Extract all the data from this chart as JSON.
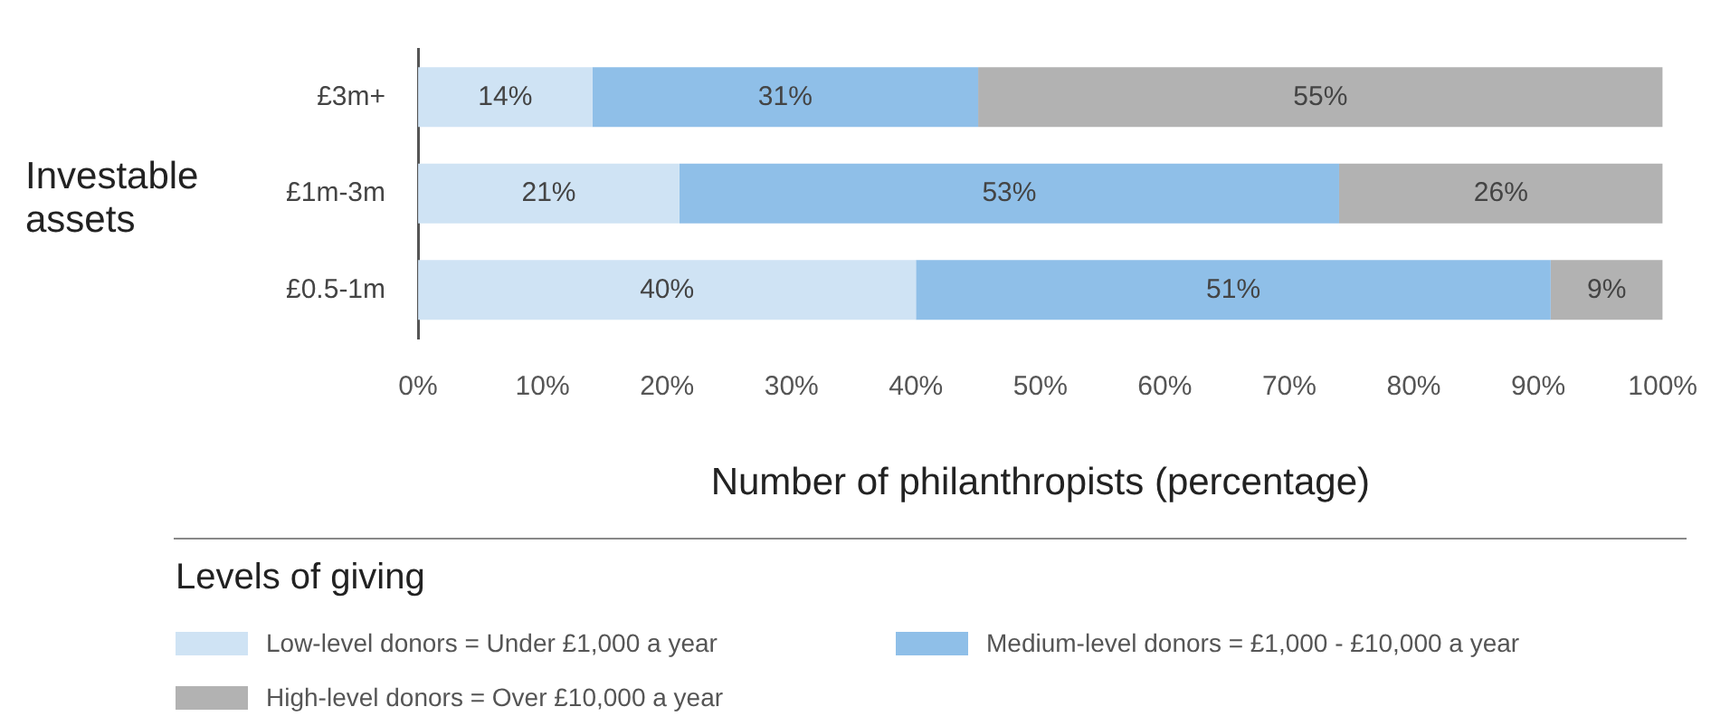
{
  "chart_data": {
    "type": "bar",
    "orientation": "horizontal",
    "stacked": true,
    "categories": [
      "£3m+",
      "£1m-3m",
      "£0.5-1m"
    ],
    "ylabel": "Investable assets",
    "xlabel": "Number of philanthropists (percentage)",
    "legend_title": "Levels of giving",
    "legend": "bottom",
    "grid": false,
    "xlim": [
      0,
      100
    ],
    "xticks": [
      {
        "value": 0,
        "label": "0%"
      },
      {
        "value": 10,
        "label": "10%"
      },
      {
        "value": 20,
        "label": "20%"
      },
      {
        "value": 30,
        "label": "30%"
      },
      {
        "value": 40,
        "label": "40%"
      },
      {
        "value": 50,
        "label": "50%"
      },
      {
        "value": 60,
        "label": "60%"
      },
      {
        "value": 70,
        "label": "70%"
      },
      {
        "value": 80,
        "label": "80%"
      },
      {
        "value": 90,
        "label": "90%"
      },
      {
        "value": 100,
        "label": "100%"
      }
    ],
    "series": [
      {
        "name": "Low-level donors = Under £1,000 a year",
        "color": "#cfe3f4",
        "values": [
          14,
          21,
          40
        ],
        "value_labels": [
          "14%",
          "21%",
          "40%"
        ]
      },
      {
        "name": "Medium-level donors = £1,000 - £10,000 a year",
        "color": "#8fbfe8",
        "values": [
          31,
          53,
          51
        ],
        "value_labels": [
          "31%",
          "53%",
          "51%"
        ]
      },
      {
        "name": "High-level donors = Over £10,000 a year",
        "color": "#b2b2b2",
        "values": [
          55,
          26,
          9
        ],
        "value_labels": [
          "55%",
          "26%",
          "9%"
        ]
      }
    ]
  }
}
